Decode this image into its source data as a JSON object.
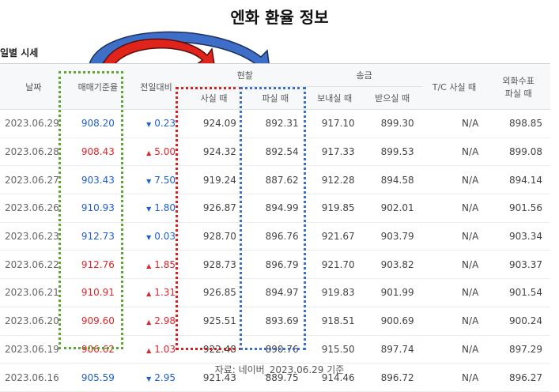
{
  "title": "엔화 환율 정보",
  "section_label": "일별 시세",
  "headers": {
    "date": "날짜",
    "base_rate": "매매기준율",
    "change": "전일대비",
    "cash": "현찰",
    "cash_buy": "사실 때",
    "cash_sell": "파실 때",
    "remit": "송금",
    "remit_send": "보내실 때",
    "remit_receive": "받으실 때",
    "tc_buy": "T/C 사실 때",
    "foreign_check_line1": "외화수표",
    "foreign_check_line2": "파실 때"
  },
  "rows": [
    {
      "date": "2023.06.29",
      "base": "908.20",
      "dir": "down",
      "change": "0.23",
      "cash_buy": "924.09",
      "cash_sell": "892.31",
      "send": "917.10",
      "receive": "899.30",
      "tc": "N/A",
      "check": "898.85"
    },
    {
      "date": "2023.06.28",
      "base": "908.43",
      "dir": "up",
      "change": "5.00",
      "cash_buy": "924.32",
      "cash_sell": "892.54",
      "send": "917.33",
      "receive": "899.53",
      "tc": "N/A",
      "check": "899.08"
    },
    {
      "date": "2023.06.27",
      "base": "903.43",
      "dir": "down",
      "change": "7.50",
      "cash_buy": "919.24",
      "cash_sell": "887.62",
      "send": "912.28",
      "receive": "894.58",
      "tc": "N/A",
      "check": "894.14"
    },
    {
      "date": "2023.06.26",
      "base": "910.93",
      "dir": "down",
      "change": "1.80",
      "cash_buy": "926.87",
      "cash_sell": "894.99",
      "send": "919.85",
      "receive": "902.01",
      "tc": "N/A",
      "check": "901.56"
    },
    {
      "date": "2023.06.23",
      "base": "912.73",
      "dir": "down",
      "change": "0.03",
      "cash_buy": "928.70",
      "cash_sell": "896.76",
      "send": "921.67",
      "receive": "903.79",
      "tc": "N/A",
      "check": "903.34"
    },
    {
      "date": "2023.06.22",
      "base": "912.76",
      "dir": "up",
      "change": "1.85",
      "cash_buy": "928.73",
      "cash_sell": "896.79",
      "send": "921.70",
      "receive": "903.82",
      "tc": "N/A",
      "check": "903.37"
    },
    {
      "date": "2023.06.21",
      "base": "910.91",
      "dir": "up",
      "change": "1.31",
      "cash_buy": "926.85",
      "cash_sell": "894.97",
      "send": "919.83",
      "receive": "901.99",
      "tc": "N/A",
      "check": "901.54"
    },
    {
      "date": "2023.06.20",
      "base": "909.60",
      "dir": "up",
      "change": "2.98",
      "cash_buy": "925.51",
      "cash_sell": "893.69",
      "send": "918.51",
      "receive": "900.69",
      "tc": "N/A",
      "check": "900.24"
    },
    {
      "date": "2023.06.19",
      "base": "906.62",
      "dir": "up",
      "change": "1.03",
      "cash_buy": "922.48",
      "cash_sell": "890.76",
      "send": "915.50",
      "receive": "897.74",
      "tc": "N/A",
      "check": "897.29"
    },
    {
      "date": "2023.06.16",
      "base": "905.59",
      "dir": "down",
      "change": "2.95",
      "cash_buy": "921.43",
      "cash_sell": "889.75",
      "send": "914.46",
      "receive": "896.72",
      "tc": "N/A",
      "check": "896.27"
    }
  ],
  "colors": {
    "up": "#e0252c",
    "down": "#1f5fcf",
    "highlight_green": "#5aa832",
    "highlight_red": "#d9201d",
    "highlight_blue": "#3d6fc8"
  },
  "source": "자료: 네이버_2023.06.29 기준"
}
